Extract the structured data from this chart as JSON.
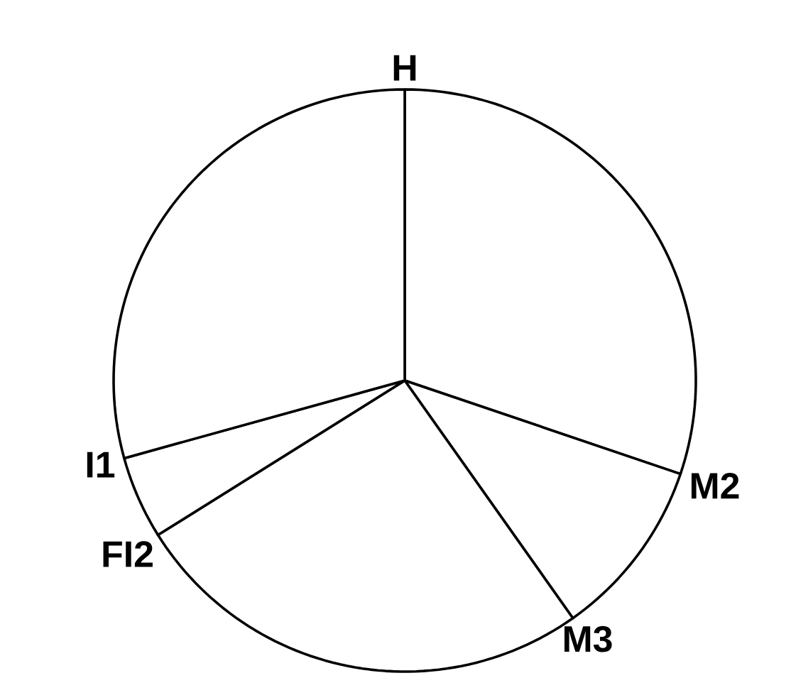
{
  "chart_data": {
    "type": "pie",
    "categories": [
      "H",
      "M2",
      "M3",
      "FI2",
      "I1"
    ],
    "values": [
      30.2,
      10.0,
      25.9,
      4.6,
      29.3
    ],
    "colors": [
      "#ffffff",
      "#ffffff",
      "#ffffff",
      "#ffffff",
      "#ffffff"
    ]
  }
}
